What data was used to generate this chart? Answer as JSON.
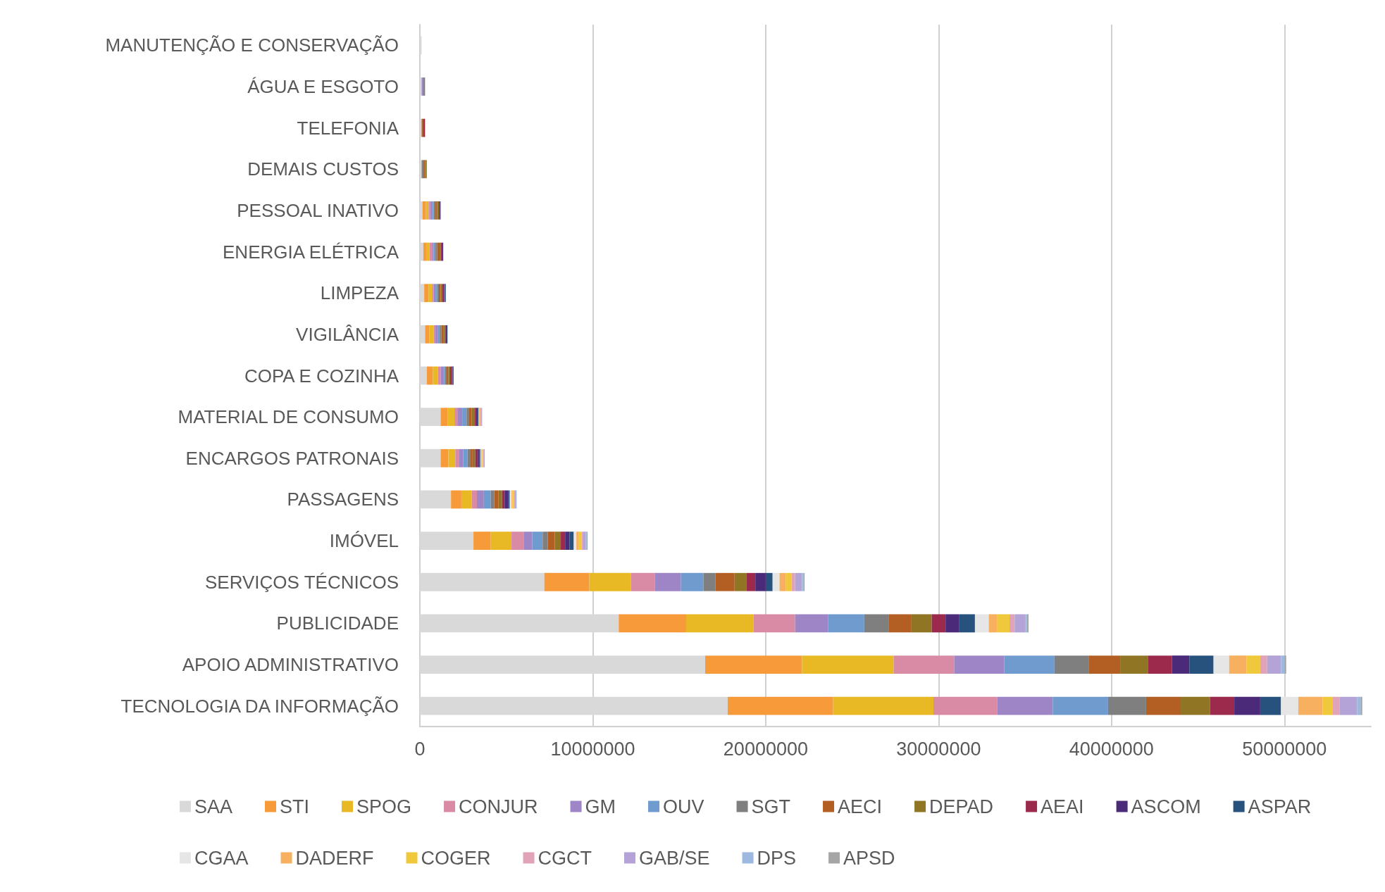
{
  "chart_data": {
    "type": "bar",
    "orientation": "horizontal",
    "stacked": true,
    "grid": "x",
    "legend": "bottom",
    "categories": [
      "MANUTENÇÃO E CONSERVAÇÃO",
      "ÁGUA E ESGOTO",
      "TELEFONIA",
      "DEMAIS CUSTOS",
      "PESSOAL INATIVO",
      "ENERGIA ELÉTRICA",
      "LIMPEZA",
      "VIGILÂNCIA",
      "COPA E COZINHA",
      "MATERIAL DE CONSUMO",
      "ENCARGOS PATRONAIS",
      "PASSAGENS",
      "IMÓVEL",
      "SERVIÇOS TÉCNICOS",
      "PUBLICIDADE",
      "APOIO ADMINISTRATIVO",
      "TECNOLOGIA DA INFORMAÇÃO"
    ],
    "xlim": [
      0,
      55000000
    ],
    "xticks": [
      0,
      10000000,
      20000000,
      30000000,
      40000000,
      50000000
    ],
    "series": [
      {
        "name": "SAA",
        "color": "#d9d9d9",
        "values": [
          100000,
          100000,
          100000,
          100000,
          150000,
          200000,
          250000,
          300000,
          400000,
          1200000,
          1200000,
          1800000,
          3100000,
          7200000,
          11500000,
          16500000,
          17800000
        ]
      },
      {
        "name": "STI",
        "color": "#f79a3a",
        "values": [
          null,
          null,
          null,
          null,
          200000,
          200000,
          250000,
          250000,
          350000,
          400000,
          450000,
          600000,
          1000000,
          2600000,
          3900000,
          5600000,
          6100000
        ]
      },
      {
        "name": "SPOG",
        "color": "#e8b825",
        "values": [
          null,
          null,
          null,
          null,
          150000,
          150000,
          200000,
          250000,
          300000,
          400000,
          400000,
          600000,
          1200000,
          2400000,
          3900000,
          5300000,
          5800000
        ]
      },
      {
        "name": "CONJUR",
        "color": "#d98aa5",
        "values": [
          null,
          null,
          null,
          null,
          100000,
          150000,
          100000,
          100000,
          150000,
          200000,
          200000,
          300000,
          700000,
          1400000,
          2400000,
          3500000,
          3700000
        ]
      },
      {
        "name": "GM",
        "color": "#9e86c6",
        "values": [
          null,
          100000,
          null,
          null,
          100000,
          100000,
          100000,
          150000,
          150000,
          250000,
          250000,
          400000,
          500000,
          1500000,
          1900000,
          2900000,
          3200000
        ]
      },
      {
        "name": "OUV",
        "color": "#6f9bcf",
        "values": [
          null,
          null,
          null,
          null,
          100000,
          100000,
          100000,
          100000,
          100000,
          250000,
          250000,
          400000,
          600000,
          1300000,
          2100000,
          2900000,
          3200000
        ]
      },
      {
        "name": "SGT",
        "color": "#7f7f7f",
        "values": [
          null,
          100000,
          null,
          100000,
          100000,
          100000,
          100000,
          100000,
          100000,
          150000,
          150000,
          200000,
          300000,
          700000,
          1400000,
          2000000,
          2200000
        ]
      },
      {
        "name": "AECI",
        "color": "#b35e22",
        "values": [
          null,
          null,
          100000,
          100000,
          100000,
          100000,
          100000,
          100000,
          100000,
          150000,
          150000,
          250000,
          400000,
          1100000,
          1300000,
          1800000,
          2000000
        ]
      },
      {
        "name": "DEPAD",
        "color": "#8f7524",
        "values": [
          null,
          null,
          null,
          100000,
          100000,
          100000,
          100000,
          100000,
          100000,
          150000,
          150000,
          200000,
          350000,
          700000,
          1200000,
          1600000,
          1700000
        ]
      },
      {
        "name": "AEAI",
        "color": "#9c2a4c",
        "values": [
          null,
          null,
          100000,
          null,
          50000,
          100000,
          100000,
          50000,
          100000,
          100000,
          150000,
          150000,
          250000,
          500000,
          800000,
          1400000,
          1400000
        ]
      },
      {
        "name": "ASCOM",
        "color": "#4b2a7a",
        "values": [
          null,
          null,
          null,
          null,
          50000,
          50000,
          50000,
          50000,
          50000,
          100000,
          100000,
          200000,
          250000,
          600000,
          800000,
          1000000,
          1500000
        ]
      },
      {
        "name": "ASPAR",
        "color": "#27527e",
        "values": [
          null,
          null,
          null,
          null,
          null,
          null,
          50000,
          50000,
          50000,
          50000,
          50000,
          100000,
          250000,
          400000,
          900000,
          1400000,
          1200000
        ]
      },
      {
        "name": "CGAA",
        "color": "#e6e6e6",
        "values": [
          null,
          null,
          null,
          null,
          null,
          null,
          null,
          null,
          null,
          null,
          50000,
          100000,
          150000,
          400000,
          800000,
          900000,
          1000000
        ]
      },
      {
        "name": "DADERF",
        "color": "#f6b060",
        "values": [
          null,
          null,
          null,
          null,
          null,
          null,
          null,
          null,
          null,
          50000,
          50000,
          50000,
          150000,
          350000,
          500000,
          1000000,
          1400000
        ]
      },
      {
        "name": "COGER",
        "color": "#f0c83c",
        "values": [
          null,
          null,
          null,
          null,
          null,
          null,
          null,
          null,
          null,
          50000,
          50000,
          100000,
          150000,
          350000,
          700000,
          800000,
          600000
        ]
      },
      {
        "name": "CGCT",
        "color": "#e0a3b8",
        "values": [
          null,
          null,
          null,
          null,
          null,
          null,
          null,
          null,
          null,
          50000,
          50000,
          50000,
          100000,
          200000,
          300000,
          400000,
          400000
        ]
      },
      {
        "name": "GAB/SE",
        "color": "#b3a3d6",
        "values": [
          null,
          null,
          null,
          null,
          null,
          null,
          null,
          null,
          null,
          50000,
          50000,
          50000,
          150000,
          400000,
          600000,
          800000,
          1000000
        ]
      },
      {
        "name": "DPS",
        "color": "#9db9df",
        "values": [
          null,
          null,
          null,
          null,
          null,
          null,
          null,
          null,
          null,
          null,
          null,
          50000,
          50000,
          100000,
          100000,
          200000,
          200000
        ]
      },
      {
        "name": "APSD",
        "color": "#a5a5a5",
        "values": [
          null,
          null,
          null,
          null,
          null,
          null,
          null,
          null,
          null,
          null,
          null,
          null,
          50000,
          50000,
          100000,
          100000,
          100000
        ]
      }
    ]
  }
}
